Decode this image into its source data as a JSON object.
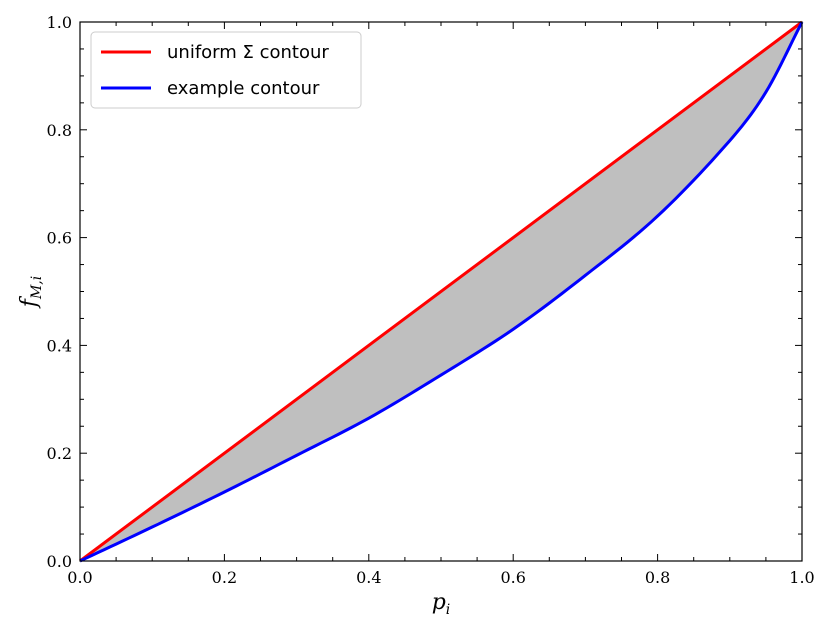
{
  "chart_data": {
    "type": "line",
    "title": "",
    "xlabel": "p_i",
    "ylabel": "f_{M,i}",
    "xlim": [
      0.0,
      1.0
    ],
    "ylim": [
      0.0,
      1.0
    ],
    "xticks": [
      "0.0",
      "0.2",
      "0.4",
      "0.6",
      "0.8",
      "1.0"
    ],
    "yticks": [
      "0.0",
      "0.2",
      "0.4",
      "0.6",
      "0.8",
      "1.0"
    ],
    "grid": false,
    "legend": {
      "placement": "top-left"
    },
    "series": [
      {
        "name": "uniform Σ contour",
        "color": "#ff0000",
        "x": [
          0.0,
          1.0
        ],
        "y": [
          0.0,
          1.0
        ]
      },
      {
        "name": "example contour",
        "color": "#0000ff",
        "x": [
          0.0,
          0.1,
          0.2,
          0.3,
          0.4,
          0.5,
          0.6,
          0.7,
          0.8,
          0.9,
          0.95,
          1.0
        ],
        "y": [
          0.0,
          0.063,
          0.128,
          0.196,
          0.265,
          0.345,
          0.43,
          0.53,
          0.64,
          0.78,
          0.87,
          1.0
        ]
      }
    ],
    "fill_between": {
      "upper": "uniform Σ contour",
      "lower": "example contour",
      "color": "#bfbfbf"
    }
  }
}
